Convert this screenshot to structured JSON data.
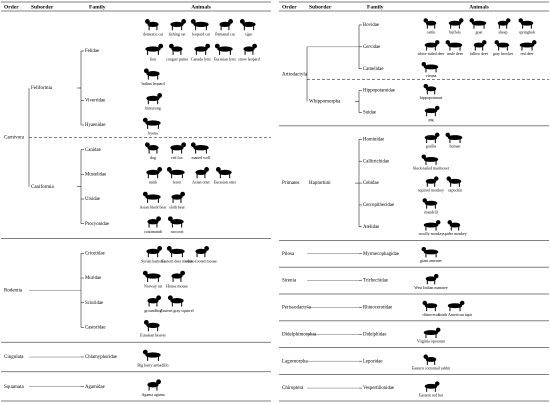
{
  "panels": [
    {
      "headers": [
        "Order",
        "Suborder",
        "Family",
        "Animals"
      ],
      "orders": [
        {
          "name": "Carnivora",
          "groups": [
            {
              "name": "Feliformia",
              "families": [
                {
                  "name": "Felidae",
                  "animals": [
                    "domestic cat",
                    "fishing cat",
                    "leopard cat",
                    "Pantanal cat",
                    "tiger",
                    "lion",
                    "cougar/ puma",
                    "Canada lynx",
                    "Eurasian lynx",
                    "snow leopard",
                    "Indian leopard"
                  ]
                },
                {
                  "name": "Viverridae",
                  "animals": [
                    "binturong"
                  ]
                },
                {
                  "name": "Hyaenidae",
                  "animals": [
                    "hyena"
                  ]
                }
              ]
            },
            {
              "name": "Caniformia",
              "families": [
                {
                  "name": "Canidae",
                  "animals": [
                    "dog",
                    "red fox",
                    "maned wolf"
                  ]
                },
                {
                  "name": "Mustelidae",
                  "animals": [
                    "mink",
                    "ferret",
                    "Asian otter",
                    "Eurasian otter"
                  ]
                },
                {
                  "name": "Ursidae",
                  "animals": [
                    "Asian black bear",
                    "sloth bear"
                  ]
                },
                {
                  "name": "Procyonidae",
                  "animals": [
                    "coatimundi",
                    "raccoon"
                  ]
                }
              ]
            }
          ]
        },
        {
          "name": "Rodentia",
          "groups": [
            {
              "families": [
                {
                  "name": "Cricetidae",
                  "animals": [
                    "Syrian hamster",
                    "Eastern deer mouse",
                    "white-footed mouse"
                  ]
                },
                {
                  "name": "Muridae",
                  "animals": [
                    "Norway rat",
                    "House mouse"
                  ]
                },
                {
                  "name": "Sciuridae",
                  "animals": [
                    "groundhog",
                    "Eastern gray squirrel"
                  ]
                },
                {
                  "name": "Castoridae",
                  "animals": [
                    "Eurasian beaver"
                  ]
                }
              ]
            }
          ]
        },
        {
          "name": "Cingulata",
          "groups": [
            {
              "families": [
                {
                  "name": "Chlamyphoridae",
                  "animals": [
                    "Big hairy armadillo"
                  ]
                }
              ]
            }
          ]
        },
        {
          "name": "Squamata",
          "groups": [
            {
              "families": [
                {
                  "name": "Agamidae",
                  "animals": [
                    "Agama agama"
                  ]
                }
              ]
            }
          ]
        }
      ]
    },
    {
      "headers": [
        "Order",
        "Suborder",
        "Family",
        "Animals"
      ],
      "orders": [
        {
          "name": "Artiodactyla",
          "groups": [
            {
              "families": [
                {
                  "name": "Bovidae",
                  "animals": [
                    "cattle",
                    "buffalo",
                    "goat",
                    "sheep",
                    "springbok"
                  ]
                },
                {
                  "name": "Cervidae",
                  "animals": [
                    "white-tailed deer",
                    "mule deer",
                    "fallow deer",
                    "gray brocket",
                    "red deer"
                  ]
                },
                {
                  "name": "Camelidae",
                  "animals": [
                    "vicuna"
                  ]
                }
              ]
            },
            {
              "name": "Whippomorpha",
              "families": [
                {
                  "name": "Hippopotamidae",
                  "animals": [
                    "hippopotamus"
                  ]
                },
                {
                  "name": "Suidae",
                  "animals": [
                    "pig"
                  ]
                }
              ]
            }
          ]
        },
        {
          "name": "Primates",
          "groups": [
            {
              "name": "Haplorhini",
              "families": [
                {
                  "name": "Hominidae",
                  "animals": [
                    "gorilla",
                    "human"
                  ]
                },
                {
                  "name": "Callitrichidae",
                  "animals": [
                    "black-tailed marmoset"
                  ]
                },
                {
                  "name": "Cebidae",
                  "animals": [
                    "squirrel monkey",
                    "capuchin"
                  ]
                },
                {
                  "name": "Cercopithecidae",
                  "animals": [
                    "mandrill"
                  ]
                },
                {
                  "name": "Atelidae",
                  "animals": [
                    "woolly monkey",
                    "spider monkey"
                  ]
                }
              ]
            }
          ]
        },
        {
          "name": "Pilosa",
          "groups": [
            {
              "families": [
                {
                  "name": "Myrmecophagidae",
                  "animals": [
                    "giant anteater"
                  ]
                }
              ]
            }
          ]
        },
        {
          "name": "Sirenia",
          "groups": [
            {
              "families": [
                {
                  "name": "Trichechidae",
                  "animals": [
                    "West Indian manatee"
                  ]
                }
              ]
            }
          ]
        },
        {
          "name": "Perissodactyla",
          "groups": [
            {
              "families": [
                {
                  "name": "Rhinocerotidae",
                  "animals": [
                    "rhinoceros",
                    "South American tapir"
                  ]
                }
              ]
            }
          ]
        },
        {
          "name": "Didelphimorphia",
          "groups": [
            {
              "families": [
                {
                  "name": "Didelphidae",
                  "animals": [
                    "Virginia opossum"
                  ]
                }
              ]
            }
          ]
        },
        {
          "name": "Lagomorpha",
          "groups": [
            {
              "families": [
                {
                  "name": "Leporidae",
                  "animals": [
                    "Eastern cottontail rabbit"
                  ]
                }
              ]
            }
          ]
        },
        {
          "name": "Chiroptera",
          "groups": [
            {
              "families": [
                {
                  "name": "Vespertilionidae",
                  "animals": [
                    "Eastern red bat"
                  ]
                }
              ]
            }
          ]
        }
      ]
    }
  ]
}
